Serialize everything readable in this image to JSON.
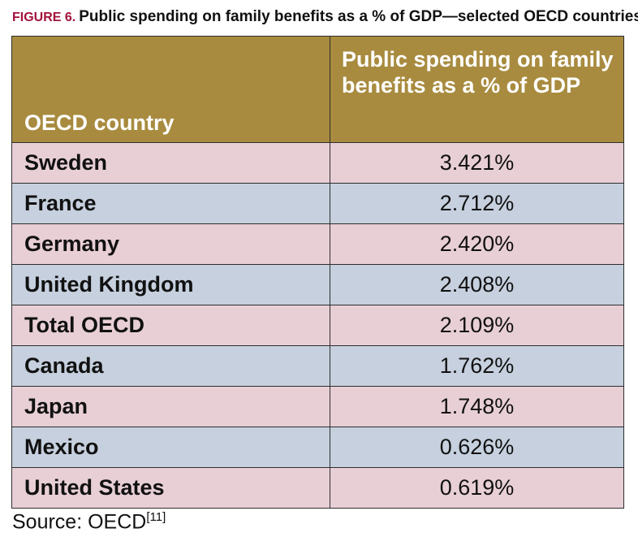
{
  "figure": {
    "label": "FIGURE 6.",
    "title": "Public spending on family benefits as a % of GDP—selected OECD countries",
    "accent_color": "#a2123c"
  },
  "colors": {
    "header_bg": "#a88b3f",
    "row_pink": "#e8cfd6",
    "row_blue": "#c6d0de"
  },
  "chart_data": {
    "type": "table",
    "columns": [
      "OECD country",
      "Public spending on family benefits as a % of GDP"
    ],
    "rows": [
      {
        "country": "Sweden",
        "value": "3.421%",
        "shade": "pink"
      },
      {
        "country": "France",
        "value": "2.712%",
        "shade": "blue"
      },
      {
        "country": "Germany",
        "value": "2.420%",
        "shade": "pink"
      },
      {
        "country": "United Kingdom",
        "value": "2.408%",
        "shade": "blue"
      },
      {
        "country": "Total OECD",
        "value": "2.109%",
        "shade": "pink"
      },
      {
        "country": "Canada",
        "value": "1.762%",
        "shade": "blue"
      },
      {
        "country": "Japan",
        "value": "1.748%",
        "shade": "pink"
      },
      {
        "country": "Mexico",
        "value": "0.626%",
        "shade": "blue"
      },
      {
        "country": "United States",
        "value": "0.619%",
        "shade": "pink"
      }
    ]
  },
  "source": {
    "text": "Source: OECD",
    "ref": "[11]"
  }
}
